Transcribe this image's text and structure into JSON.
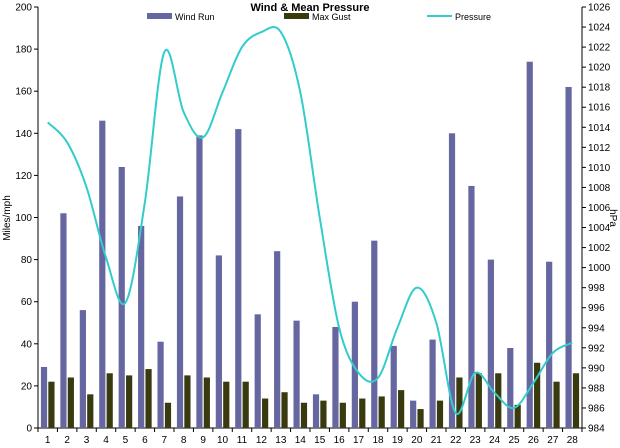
{
  "chart_data": {
    "type": "bar",
    "title": "Wind & Mean Pressure",
    "ylabel": "Miles/mph",
    "y2label": "hPa",
    "categories": [
      "1",
      "2",
      "3",
      "4",
      "5",
      "6",
      "7",
      "8",
      "9",
      "10",
      "11",
      "12",
      "13",
      "14",
      "15",
      "16",
      "17",
      "18",
      "19",
      "20",
      "21",
      "22",
      "23",
      "24",
      "25",
      "26",
      "27",
      "28"
    ],
    "ylim": [
      0,
      200
    ],
    "y_ticks": [
      "0",
      "20",
      "40",
      "60",
      "80",
      "100",
      "120",
      "140",
      "160",
      "180",
      "200"
    ],
    "y2lim": [
      984,
      1026
    ],
    "y2_ticks": [
      "984",
      "986",
      "988",
      "990",
      "992",
      "994",
      "996",
      "998",
      "1000",
      "1002",
      "1004",
      "1006",
      "1008",
      "1010",
      "1012",
      "1014",
      "1016",
      "1018",
      "1020",
      "1022",
      "1024",
      "1026"
    ],
    "grid": false,
    "legend_position": "top",
    "series": [
      {
        "name": "Wind Run",
        "type": "bar",
        "axis": "left",
        "color": "#6666A0",
        "values": [
          29,
          102,
          56,
          146,
          124,
          96,
          41,
          110,
          139,
          82,
          142,
          54,
          84,
          51,
          16,
          48,
          60,
          89,
          39,
          13,
          42,
          140,
          115,
          80,
          38,
          174,
          79,
          162
        ]
      },
      {
        "name": "Max Gust",
        "type": "bar",
        "axis": "left",
        "color": "#3A3A10",
        "values": [
          22,
          24,
          16,
          26,
          25,
          28,
          12,
          25,
          24,
          22,
          22,
          14,
          17,
          12,
          13,
          12,
          14,
          15,
          18,
          9,
          13,
          24,
          26,
          26,
          11,
          31,
          22,
          26
        ]
      },
      {
        "name": "Pressure",
        "type": "line",
        "axis": "right",
        "color": "#33CCCC",
        "values": [
          1014.5,
          1012.5,
          1008,
          1001,
          996.5,
          1006.5,
          1021.5,
          1015.5,
          1013,
          1017.5,
          1022,
          1023.5,
          1023.5,
          1017.5,
          1005,
          994,
          989.5,
          989,
          994,
          998,
          994.5,
          985.5,
          989.5,
          987.5,
          986,
          988.5,
          991.5,
          992.5
        ]
      }
    ]
  }
}
